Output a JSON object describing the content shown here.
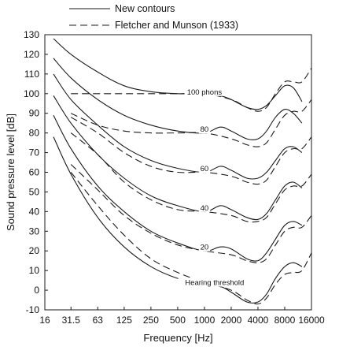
{
  "chart_data": {
    "type": "line",
    "xlabel": "Frequency [Hz]",
    "ylabel": "Sound pressure level [dB]",
    "x_scale": "log",
    "xlim": [
      16,
      16000
    ],
    "ylim": [
      -10,
      130
    ],
    "x_ticks": [
      16,
      31.5,
      63,
      125,
      250,
      500,
      1000,
      2000,
      4000,
      8000,
      16000
    ],
    "x_tick_labels": [
      "16",
      "31.5",
      "63",
      "125",
      "250",
      "500",
      "1000",
      "2000",
      "4000",
      "8000",
      "16000"
    ],
    "y_ticks": [
      -10,
      0,
      10,
      20,
      30,
      40,
      50,
      60,
      70,
      80,
      90,
      100,
      110,
      120,
      130
    ],
    "y_tick_labels": [
      "-10",
      "0",
      "10",
      "20",
      "30",
      "40",
      "50",
      "60",
      "70",
      "80",
      "90",
      "100",
      "110",
      "120",
      "130"
    ],
    "grid": false,
    "legend": {
      "placement": "top",
      "entries": [
        {
          "label": "New contours",
          "style": "solid"
        },
        {
          "label": "Fletcher and Munson (1933)",
          "style": "dashed"
        }
      ]
    },
    "series": [
      {
        "group": "new",
        "style": "solid",
        "label": "100 phons",
        "x": [
          20,
          31.5,
          63,
          125,
          250,
          500,
          1000,
          1500,
          2000,
          3000,
          4000,
          5000,
          6300,
          8000,
          10000,
          12500
        ],
        "y": [
          128,
          120,
          111,
          104,
          101,
          100,
          100,
          99,
          97,
          93,
          92,
          94,
          99,
          104,
          103,
          96
        ]
      },
      {
        "group": "new",
        "style": "solid",
        "label": "80",
        "x": [
          20,
          31.5,
          63,
          125,
          250,
          500,
          1000,
          1500,
          2000,
          3000,
          4000,
          5000,
          6300,
          8000,
          10000,
          12500
        ],
        "y": [
          118,
          108,
          97,
          89,
          84,
          81,
          80,
          83,
          81,
          77,
          77,
          81,
          88,
          92,
          90,
          85
        ]
      },
      {
        "group": "new",
        "style": "solid",
        "label": "60",
        "x": [
          20,
          31.5,
          63,
          125,
          250,
          500,
          1000,
          1500,
          2000,
          3000,
          4000,
          5000,
          6300,
          8000,
          10000,
          12500
        ],
        "y": [
          110,
          97,
          84,
          73,
          66,
          62,
          60,
          63,
          61,
          57,
          57,
          60,
          66,
          72,
          73,
          70
        ]
      },
      {
        "group": "new",
        "style": "solid",
        "label": "40",
        "x": [
          20,
          31.5,
          63,
          125,
          250,
          500,
          1000,
          1500,
          2000,
          3000,
          4000,
          5000,
          6300,
          8000,
          10000,
          12500
        ],
        "y": [
          99,
          85,
          69,
          57,
          48,
          43,
          40,
          43,
          41,
          37,
          36,
          39,
          46,
          53,
          55,
          52
        ]
      },
      {
        "group": "new",
        "style": "solid",
        "label": "20",
        "x": [
          20,
          31.5,
          63,
          125,
          250,
          500,
          1000,
          1500,
          2000,
          3000,
          4000,
          5000,
          6300,
          8000,
          10000,
          12500
        ],
        "y": [
          89,
          72,
          53,
          40,
          30,
          24,
          20,
          22,
          21,
          16,
          15,
          19,
          26,
          33,
          35,
          33
        ]
      },
      {
        "group": "new",
        "style": "solid",
        "label": "Hearing threshold",
        "x": [
          20,
          31.5,
          63,
          125,
          250,
          500,
          1000,
          1500,
          2000,
          3000,
          4000,
          5000,
          6300,
          8000,
          10000,
          12500
        ],
        "y": [
          78,
          59,
          37,
          22,
          12,
          6,
          3,
          2,
          -1,
          -6,
          -6,
          -2,
          6,
          12,
          14,
          12
        ]
      },
      {
        "group": "fletcher_munson",
        "style": "dashed",
        "label": "100 phons",
        "x": [
          31.5,
          63,
          125,
          250,
          500,
          1000,
          2000,
          3000,
          4000,
          5000,
          6300,
          8000,
          10000,
          12500,
          16000
        ],
        "y": [
          100,
          100,
          100,
          100,
          100,
          100,
          97,
          93,
          91,
          93,
          100,
          106,
          106,
          106,
          113
        ]
      },
      {
        "group": "fletcher_munson",
        "style": "dashed",
        "label": "80",
        "x": [
          31.5,
          63,
          125,
          250,
          500,
          1000,
          2000,
          3000,
          4000,
          5000,
          6300,
          8000,
          10000,
          12500,
          16000
        ],
        "y": [
          90,
          84,
          81,
          80,
          80,
          80,
          77,
          74,
          73,
          75,
          82,
          89,
          91,
          91,
          97
        ]
      },
      {
        "group": "fletcher_munson",
        "style": "dashed",
        "label": "60",
        "x": [
          31.5,
          63,
          125,
          250,
          500,
          1000,
          2000,
          3000,
          4000,
          5000,
          6300,
          8000,
          10000,
          12500,
          16000
        ],
        "y": [
          88,
          80,
          70,
          63,
          60,
          60,
          58,
          55,
          54,
          56,
          63,
          70,
          72,
          72,
          78
        ]
      },
      {
        "group": "fletcher_munson",
        "style": "dashed",
        "label": "40",
        "x": [
          31.5,
          63,
          125,
          250,
          500,
          1000,
          2000,
          3000,
          4000,
          5000,
          6300,
          8000,
          10000,
          12500,
          16000
        ],
        "y": [
          80,
          69,
          55,
          46,
          41,
          40,
          38,
          35,
          35,
          37,
          44,
          51,
          53,
          53,
          59
        ]
      },
      {
        "group": "fletcher_munson",
        "style": "dashed",
        "label": "20",
        "x": [
          31.5,
          63,
          125,
          250,
          500,
          1000,
          2000,
          3000,
          4000,
          5000,
          6300,
          8000,
          10000,
          12500,
          16000
        ],
        "y": [
          64,
          51,
          38,
          29,
          23,
          20,
          18,
          15,
          14,
          16,
          23,
          30,
          32,
          32,
          38
        ]
      },
      {
        "group": "fletcher_munson",
        "style": "dashed",
        "label": "threshold",
        "x": [
          31.5,
          63,
          125,
          250,
          500,
          1000,
          2000,
          3000,
          4000,
          5000,
          6300,
          8000,
          10000,
          12500,
          16000
        ],
        "y": [
          60,
          43,
          28,
          16,
          9,
          4,
          0,
          -5,
          -7,
          -4,
          3,
          8,
          9,
          10,
          19
        ]
      }
    ],
    "curve_labels": [
      {
        "text": "100 phons",
        "x": 1000,
        "y": 100
      },
      {
        "text": "80",
        "x": 1000,
        "y": 81
      },
      {
        "text": "60",
        "x": 1000,
        "y": 61
      },
      {
        "text": "40",
        "x": 1000,
        "y": 41
      },
      {
        "text": "20",
        "x": 1000,
        "y": 21
      },
      {
        "text": "Hearing threshold",
        "x": 1300,
        "y": 3
      }
    ]
  }
}
